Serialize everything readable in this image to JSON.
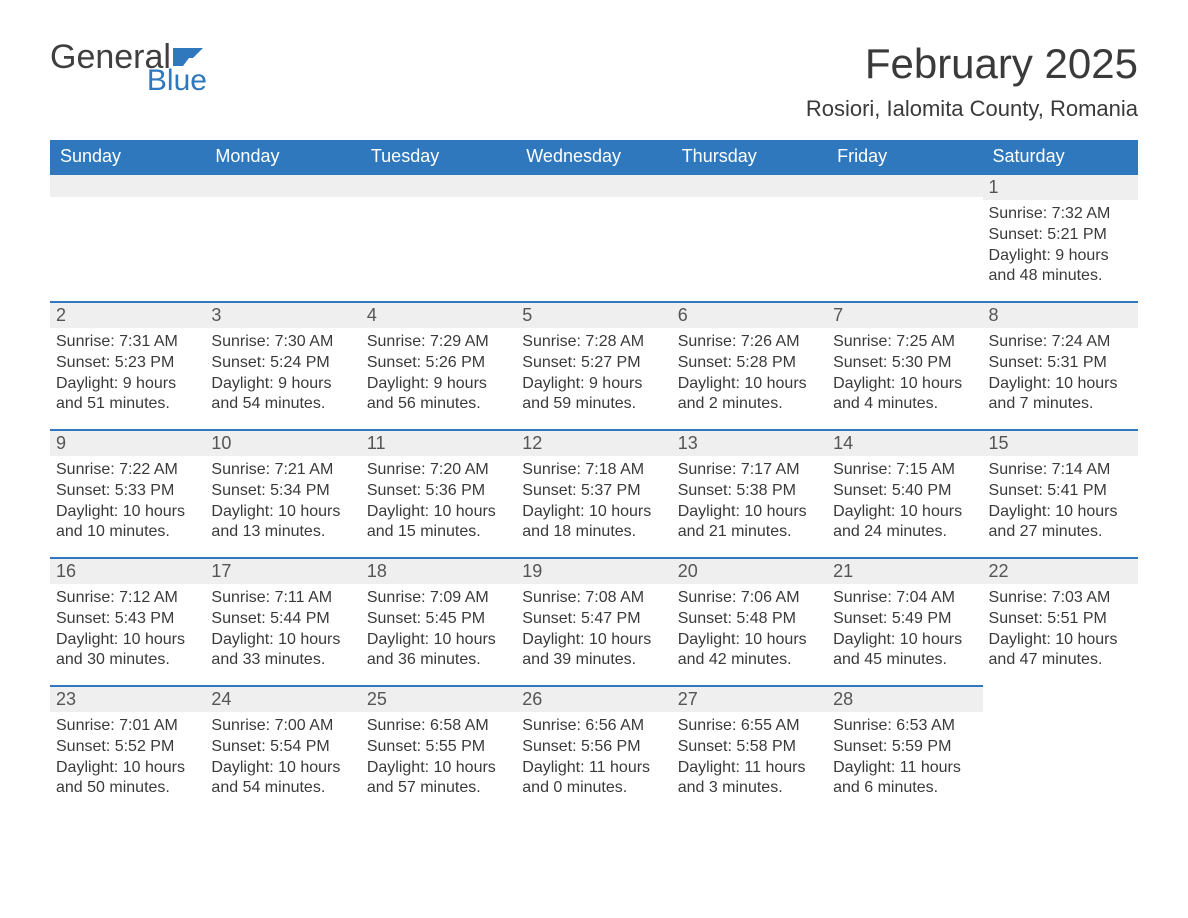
{
  "logo": {
    "general": "General",
    "blue": "Blue",
    "flag_color": "#2f78bd"
  },
  "title": "February 2025",
  "location": "Rosiori, Ialomita County, Romania",
  "colors": {
    "header_bg": "#2f78bd",
    "header_text": "#ffffff",
    "daynum_bg": "#efefef",
    "row_border": "#2f78bd",
    "body_text": "#3a3a3a",
    "page_bg": "#ffffff"
  },
  "weekdays": [
    "Sunday",
    "Monday",
    "Tuesday",
    "Wednesday",
    "Thursday",
    "Friday",
    "Saturday"
  ],
  "start_weekday_index": 6,
  "days": [
    {
      "n": 1,
      "sunrise": "7:32 AM",
      "sunset": "5:21 PM",
      "daylight": "9 hours and 48 minutes."
    },
    {
      "n": 2,
      "sunrise": "7:31 AM",
      "sunset": "5:23 PM",
      "daylight": "9 hours and 51 minutes."
    },
    {
      "n": 3,
      "sunrise": "7:30 AM",
      "sunset": "5:24 PM",
      "daylight": "9 hours and 54 minutes."
    },
    {
      "n": 4,
      "sunrise": "7:29 AM",
      "sunset": "5:26 PM",
      "daylight": "9 hours and 56 minutes."
    },
    {
      "n": 5,
      "sunrise": "7:28 AM",
      "sunset": "5:27 PM",
      "daylight": "9 hours and 59 minutes."
    },
    {
      "n": 6,
      "sunrise": "7:26 AM",
      "sunset": "5:28 PM",
      "daylight": "10 hours and 2 minutes."
    },
    {
      "n": 7,
      "sunrise": "7:25 AM",
      "sunset": "5:30 PM",
      "daylight": "10 hours and 4 minutes."
    },
    {
      "n": 8,
      "sunrise": "7:24 AM",
      "sunset": "5:31 PM",
      "daylight": "10 hours and 7 minutes."
    },
    {
      "n": 9,
      "sunrise": "7:22 AM",
      "sunset": "5:33 PM",
      "daylight": "10 hours and 10 minutes."
    },
    {
      "n": 10,
      "sunrise": "7:21 AM",
      "sunset": "5:34 PM",
      "daylight": "10 hours and 13 minutes."
    },
    {
      "n": 11,
      "sunrise": "7:20 AM",
      "sunset": "5:36 PM",
      "daylight": "10 hours and 15 minutes."
    },
    {
      "n": 12,
      "sunrise": "7:18 AM",
      "sunset": "5:37 PM",
      "daylight": "10 hours and 18 minutes."
    },
    {
      "n": 13,
      "sunrise": "7:17 AM",
      "sunset": "5:38 PM",
      "daylight": "10 hours and 21 minutes."
    },
    {
      "n": 14,
      "sunrise": "7:15 AM",
      "sunset": "5:40 PM",
      "daylight": "10 hours and 24 minutes."
    },
    {
      "n": 15,
      "sunrise": "7:14 AM",
      "sunset": "5:41 PM",
      "daylight": "10 hours and 27 minutes."
    },
    {
      "n": 16,
      "sunrise": "7:12 AM",
      "sunset": "5:43 PM",
      "daylight": "10 hours and 30 minutes."
    },
    {
      "n": 17,
      "sunrise": "7:11 AM",
      "sunset": "5:44 PM",
      "daylight": "10 hours and 33 minutes."
    },
    {
      "n": 18,
      "sunrise": "7:09 AM",
      "sunset": "5:45 PM",
      "daylight": "10 hours and 36 minutes."
    },
    {
      "n": 19,
      "sunrise": "7:08 AM",
      "sunset": "5:47 PM",
      "daylight": "10 hours and 39 minutes."
    },
    {
      "n": 20,
      "sunrise": "7:06 AM",
      "sunset": "5:48 PM",
      "daylight": "10 hours and 42 minutes."
    },
    {
      "n": 21,
      "sunrise": "7:04 AM",
      "sunset": "5:49 PM",
      "daylight": "10 hours and 45 minutes."
    },
    {
      "n": 22,
      "sunrise": "7:03 AM",
      "sunset": "5:51 PM",
      "daylight": "10 hours and 47 minutes."
    },
    {
      "n": 23,
      "sunrise": "7:01 AM",
      "sunset": "5:52 PM",
      "daylight": "10 hours and 50 minutes."
    },
    {
      "n": 24,
      "sunrise": "7:00 AM",
      "sunset": "5:54 PM",
      "daylight": "10 hours and 54 minutes."
    },
    {
      "n": 25,
      "sunrise": "6:58 AM",
      "sunset": "5:55 PM",
      "daylight": "10 hours and 57 minutes."
    },
    {
      "n": 26,
      "sunrise": "6:56 AM",
      "sunset": "5:56 PM",
      "daylight": "11 hours and 0 minutes."
    },
    {
      "n": 27,
      "sunrise": "6:55 AM",
      "sunset": "5:58 PM",
      "daylight": "11 hours and 3 minutes."
    },
    {
      "n": 28,
      "sunrise": "6:53 AM",
      "sunset": "5:59 PM",
      "daylight": "11 hours and 6 minutes."
    }
  ],
  "labels": {
    "sunrise": "Sunrise:",
    "sunset": "Sunset:",
    "daylight": "Daylight:"
  }
}
